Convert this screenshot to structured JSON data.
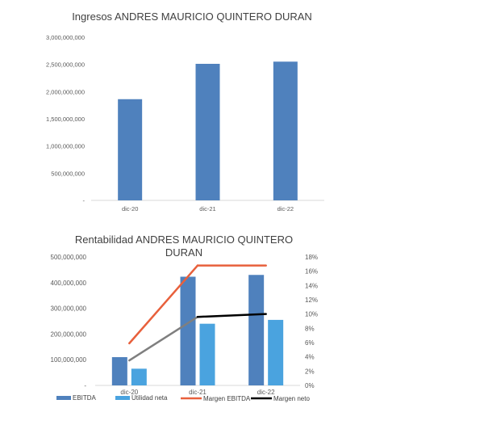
{
  "chart_data": [
    {
      "type": "bar",
      "title": "Ingresos ANDRES MAURICIO QUINTERO DURAN",
      "categories": [
        "dic-20",
        "dic-21",
        "dic-22"
      ],
      "values": [
        1860000000,
        2510000000,
        2550000000
      ],
      "ylim": [
        0,
        3000000000
      ],
      "yticks": [
        "-",
        "500,000,000",
        "1,000,000,000",
        "1,500,000,000",
        "2,000,000,000",
        "2,500,000,000",
        "3,000,000,000"
      ],
      "xlabel": "",
      "ylabel": "",
      "colors": {
        "bar": "#4f81bd"
      },
      "grid": false
    },
    {
      "type": "bar",
      "title_lines": [
        "Rentabilidad ANDRES MAURICIO QUINTERO",
        "DURAN"
      ],
      "categories": [
        "dic-20",
        "dic-21",
        "dic-22"
      ],
      "series": [
        {
          "name": "EBITDA",
          "kind": "bar",
          "axis": "left",
          "color": "#4f81bd",
          "values": [
            110000000,
            423000000,
            430000000
          ]
        },
        {
          "name": "Utilidad neta",
          "kind": "bar",
          "axis": "left",
          "color": "#4aa3df",
          "values": [
            65000000,
            240000000,
            255000000
          ]
        },
        {
          "name": "Margen EBITDA",
          "kind": "line",
          "axis": "right",
          "color": "#e8603c",
          "values": [
            0.059,
            0.168,
            0.168
          ]
        },
        {
          "name": "Margen neto",
          "kind": "line",
          "axis": "right",
          "color": "#000000",
          "values": [
            0.035,
            0.096,
            0.1
          ]
        }
      ],
      "ylim_left": [
        0,
        500000000
      ],
      "yticks_left": [
        "-",
        "100,000,000",
        "200,000,000",
        "300,000,000",
        "400,000,000",
        "500,000,000"
      ],
      "ylim_right": [
        0,
        0.18
      ],
      "yticks_right": [
        "0%",
        "2%",
        "4%",
        "6%",
        "8%",
        "10%",
        "12%",
        "14%",
        "16%",
        "18%"
      ],
      "legend_position": "bottom",
      "grid": false
    }
  ]
}
